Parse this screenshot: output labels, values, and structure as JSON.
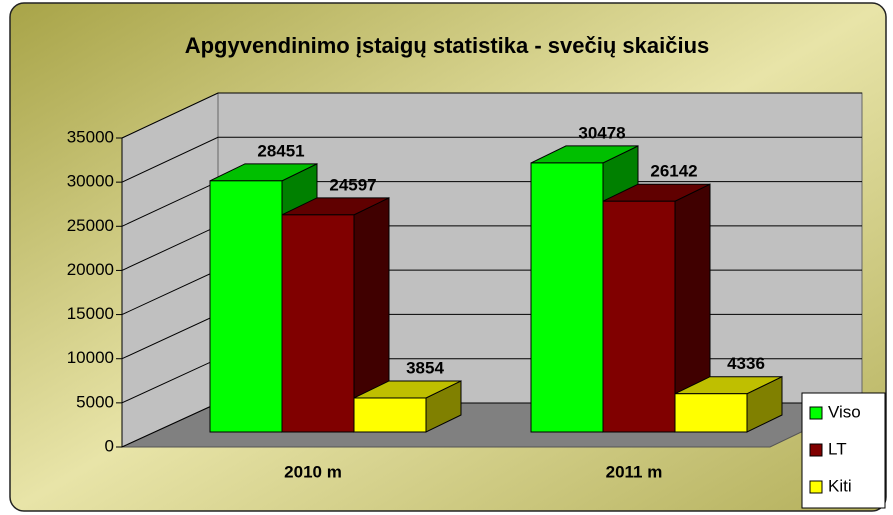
{
  "chart_data": {
    "type": "bar3d",
    "title": "Apgyvendinimo įstaigų statistika - svečių skaičius",
    "categories": [
      "2010 m",
      "2011 m"
    ],
    "series": [
      {
        "name": "Viso",
        "color": "#00ff00",
        "values": [
          28451,
          30478
        ]
      },
      {
        "name": "LT",
        "color": "#800000",
        "values": [
          24597,
          26142
        ]
      },
      {
        "name": "Kiti",
        "color": "#ffff00",
        "values": [
          3854,
          4336
        ]
      }
    ],
    "ylim": [
      0,
      35000
    ],
    "yticks": [
      0,
      5000,
      10000,
      15000,
      20000,
      25000,
      30000,
      35000
    ],
    "grid": true,
    "legend": "right"
  }
}
